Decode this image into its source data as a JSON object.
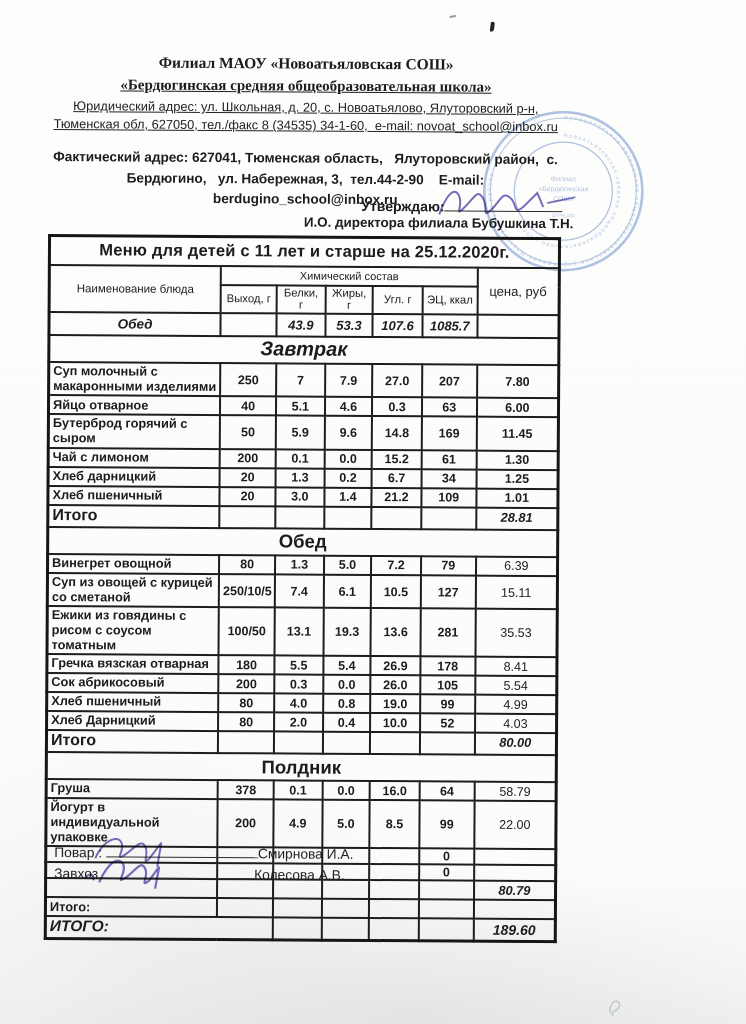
{
  "document": {
    "org_header": {
      "line1": "Филиал МАОУ «Новоатьяловская СОШ»",
      "line2": "«Бердюгинская средняя общеобразовательная школа»",
      "legal_address_1": "Юридический адрес: ул. Школьная, д. 20, с. Новоатьялово, Ялуторовский р-н,",
      "legal_address_2": "Тюменская обл, 627050, тел./факс 8 (34535) 34-1-60,  e-mail: novoat_school@inbox.ru",
      "actual_address_1": "Фактический адрес: 627041, Тюменская область,   Ялуторовский район,  с.",
      "actual_address_2": "Бердюгино,   ул. Набережная, 3,  тел.44-2-90    E-mail: berdugino_school@inbox.ru",
      "approve_label": "Утверждаю:",
      "approver_line": "И.О. директора филиала Бубушкина Т.Н."
    },
    "table": {
      "title": "Меню для детей с 11 лет и старше на 25.12.2020г.",
      "col_name": "Наименование блюда",
      "col_chem_group": "Химический состав",
      "col_out": "Выход, г",
      "col_protein": "Белки, г",
      "col_fat": "Жиры, г",
      "col_carb": "Угл. г",
      "col_kcal": "ЭЦ, ккал",
      "col_price": "цена, руб",
      "day_summary": {
        "name": "Обед",
        "out": "",
        "protein": "43.9",
        "fat": "53.3",
        "carb": "107.6",
        "kcal": "1085.7",
        "price": ""
      },
      "sections": [
        {
          "header": "Завтрак",
          "rows": [
            {
              "name": "Суп молочный с макаронными изделиями",
              "out": "250",
              "protein": "7",
              "fat": "7.9",
              "carb": "27.0",
              "kcal": "207",
              "price": "7.80"
            },
            {
              "name": "Яйцо отварное",
              "out": "40",
              "protein": "5.1",
              "fat": "4.6",
              "carb": "0.3",
              "kcal": "63",
              "price": "6.00"
            },
            {
              "name": "Бутерброд горячий с сыром",
              "out": "50",
              "protein": "5.9",
              "fat": "9.6",
              "carb": "14.8",
              "kcal": "169",
              "price": "11.45"
            },
            {
              "name": "Чай с лимоном",
              "out": "200",
              "protein": "0.1",
              "fat": "0.0",
              "carb": "15.2",
              "kcal": "61",
              "price": "1.30"
            },
            {
              "name": "Хлеб дарницкий",
              "out": "20",
              "protein": "1.3",
              "fat": "0.2",
              "carb": "6.7",
              "kcal": "34",
              "price": "1.25"
            },
            {
              "name": "Хлеб пшеничный",
              "out": "20",
              "protein": "3.0",
              "fat": "1.4",
              "carb": "21.2",
              "kcal": "109",
              "price": "1.01"
            }
          ],
          "total": {
            "label": "Итого",
            "price": "28.81"
          }
        },
        {
          "header": "Обед",
          "rows": [
            {
              "name": "Винегрет овощной",
              "out": "80",
              "protein": "1.3",
              "fat": "5.0",
              "carb": "7.2",
              "kcal": "79",
              "price": "6.39"
            },
            {
              "name": "Суп из овощей с курицей со сметаной",
              "out": "250/10/5",
              "protein": "7.4",
              "fat": "6.1",
              "carb": "10.5",
              "kcal": "127",
              "price": "15.11"
            },
            {
              "name": "Ежики из говядины с рисом с соусом томатным",
              "out": "100/50",
              "protein": "13.1",
              "fat": "19.3",
              "carb": "13.6",
              "kcal": "281",
              "price": "35.53"
            },
            {
              "name": "Гречка вязская отварная",
              "out": "180",
              "protein": "5.5",
              "fat": "5.4",
              "carb": "26.9",
              "kcal": "178",
              "price": "8.41"
            },
            {
              "name": "Сок абрикосовый",
              "out": "200",
              "protein": "0.3",
              "fat": "0.0",
              "carb": "26.0",
              "kcal": "105",
              "price": "5.54"
            },
            {
              "name": "Хлеб пшеничный",
              "out": "80",
              "protein": "4.0",
              "fat": "0.8",
              "carb": "19.0",
              "kcal": "99",
              "price": "4.99"
            },
            {
              "name": "Хлеб Дарницкий",
              "out": "80",
              "protein": "2.0",
              "fat": "0.4",
              "carb": "10.0",
              "kcal": "52",
              "price": "4.03"
            }
          ],
          "total": {
            "label": "Итого",
            "price": "80.00"
          }
        },
        {
          "header": "Полдник",
          "rows": [
            {
              "name": "Груша",
              "out": "378",
              "protein": "0.1",
              "fat": "0.0",
              "carb": "16.0",
              "kcal": "64",
              "price": "58.79"
            },
            {
              "name": "Йогурт в индивидуальной упаковке",
              "out": "200",
              "protein": "4.9",
              "fat": "5.0",
              "carb": "8.5",
              "kcal": "99",
              "price": "22.00"
            },
            {
              "name": "",
              "out": "",
              "protein": "",
              "fat": "",
              "carb": "",
              "kcal": "0",
              "price": "",
              "type": "filler"
            },
            {
              "name": "",
              "out": "",
              "protein": "",
              "fat": "",
              "carb": "",
              "kcal": "0",
              "price": "",
              "type": "filler"
            },
            {
              "name": "",
              "out": "",
              "protein": "",
              "fat": "",
              "carb": "",
              "kcal": "",
              "price": "80.79",
              "type": "subvalue"
            }
          ],
          "total": {
            "label": "Итого:",
            "price": ""
          }
        }
      ],
      "grand_total_label": "ИТОГО:",
      "grand_total": "189.60"
    },
    "signatures": {
      "cook_label": "Повар :",
      "cook_name": "Смирнова И.А.",
      "zavhoz_label": "Завхоз",
      "zavhoz_name": "Колесова А.В."
    }
  }
}
